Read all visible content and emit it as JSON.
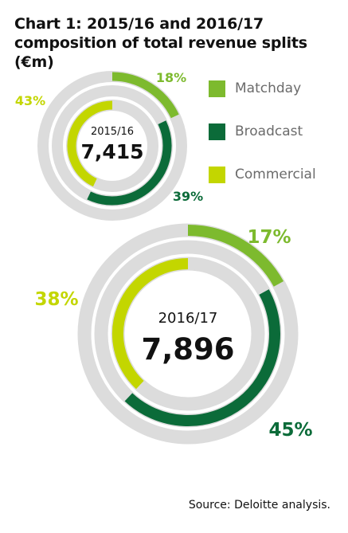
{
  "title_lines": [
    "Chart 1: 2015/16 and 2016/17",
    "composition of total revenue splits (€m)"
  ],
  "source": "Source: Deloitte analysis.",
  "colors": {
    "matchday": "#7dba2e",
    "broadcast": "#0b6b39",
    "commercial": "#c3d600",
    "track": "#dcdcdc"
  },
  "legend": [
    {
      "label": "Matchday",
      "color": "#7dba2e"
    },
    {
      "label": "Broadcast",
      "color": "#0b6b39"
    },
    {
      "label": "Commercial",
      "color": "#c3d600"
    }
  ],
  "chart_data": [
    {
      "type": "pie",
      "style": "concentric-donut",
      "center_label": "2015/16",
      "center_value": "7,415",
      "slices": [
        {
          "name": "Matchday",
          "value": 18,
          "label": "18%",
          "ring": "outer"
        },
        {
          "name": "Broadcast",
          "value": 39,
          "label": "39%",
          "ring": "middle"
        },
        {
          "name": "Commercial",
          "value": 43,
          "label": "43%",
          "ring": "inner"
        }
      ]
    },
    {
      "type": "pie",
      "style": "concentric-donut",
      "center_label": "2016/17",
      "center_value": "7,896",
      "slices": [
        {
          "name": "Matchday",
          "value": 17,
          "label": "17%",
          "ring": "outer"
        },
        {
          "name": "Broadcast",
          "value": 45,
          "label": "45%",
          "ring": "middle"
        },
        {
          "name": "Commercial",
          "value": 38,
          "label": "38%",
          "ring": "inner"
        }
      ]
    }
  ]
}
